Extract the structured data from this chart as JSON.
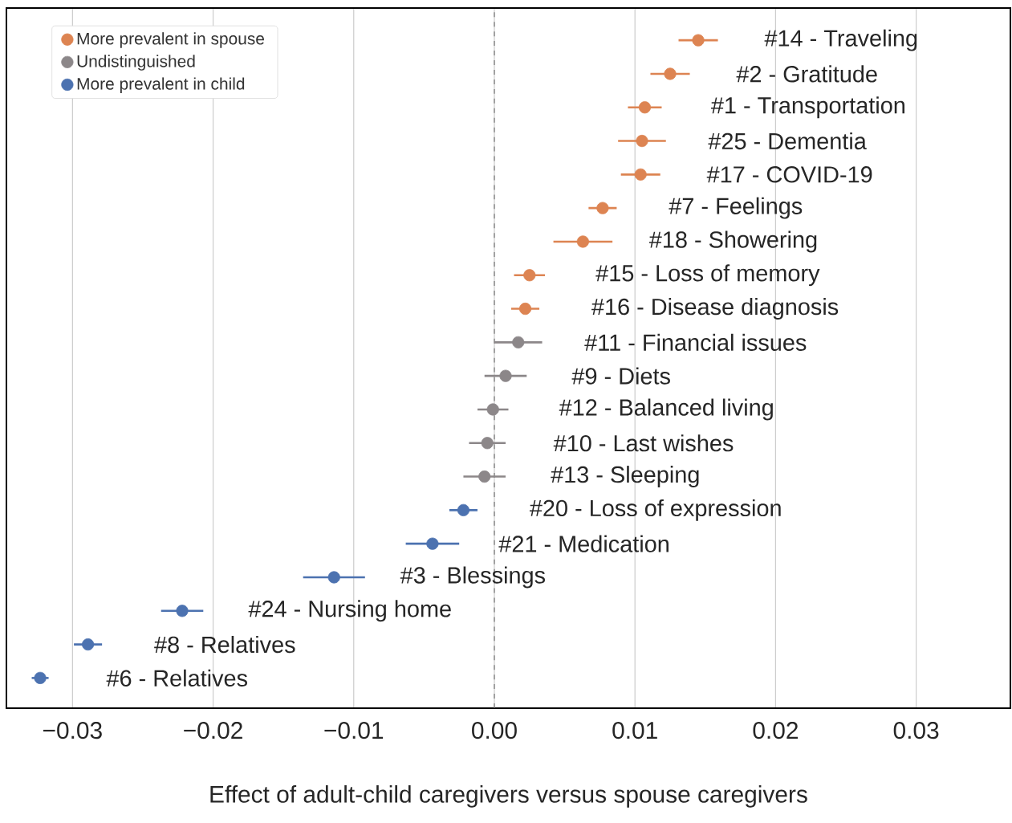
{
  "chart_data": {
    "type": "scatter",
    "orientation": "horizontal",
    "categories": [
      "#14 - Traveling",
      "#2 - Gratitude",
      "#1 - Transportation",
      "#25 - Dementia",
      "#17 - COVID-19",
      "#7 - Feelings",
      "#18 - Showering",
      "#15 - Loss of memory",
      "#16 - Disease diagnosis",
      "#11 - Financial issues",
      "#9 - Diets",
      "#12 - Balanced living",
      "#10 - Last wishes",
      "#13 - Sleeping",
      "#20 - Loss of expression",
      "#21 - Medication",
      "#3 - Blessings",
      "#24 - Nursing home",
      "#8 - Relatives",
      "#6 - Relatives"
    ],
    "xlabel": "Effect of adult-child caregivers versus spouse caregivers",
    "xlim": [
      -0.0347,
      0.0367
    ],
    "xticks": [
      {
        "value": -0.03,
        "label": "−0.03"
      },
      {
        "value": -0.02,
        "label": "−0.02"
      },
      {
        "value": -0.01,
        "label": "−0.01"
      },
      {
        "value": 0,
        "label": "0.00"
      },
      {
        "value": 0.01,
        "label": "0.01"
      },
      {
        "value": 0.02,
        "label": "0.02"
      },
      {
        "value": 0.03,
        "label": "0.03"
      }
    ],
    "grid": "x",
    "legend": "top left",
    "marker": "circle",
    "ref_lines": [
      {
        "axis": "x",
        "value": 0,
        "line_style": "dashed",
        "color": "#777777"
      }
    ],
    "series": [
      {
        "name": "More prevalent in spouse",
        "color": "#dd8452",
        "values": [
          0.0145,
          0.0125,
          0.0107,
          0.0105,
          0.0104,
          0.0077,
          0.0063,
          0.0025,
          0.0022,
          null,
          null,
          null,
          null,
          null,
          null,
          null,
          null,
          null,
          null,
          null
        ],
        "errors": [
          0.0014,
          0.0014,
          0.0012,
          0.0017,
          0.0014,
          0.001,
          0.0021,
          0.0011,
          0.001,
          null,
          null,
          null,
          null,
          null,
          null,
          null,
          null,
          null,
          null,
          null
        ]
      },
      {
        "name": "Undistinguished",
        "color": "#8c8789",
        "values": [
          null,
          null,
          null,
          null,
          null,
          null,
          null,
          null,
          null,
          0.0017,
          0.0008,
          -0.0001,
          -0.0005,
          -0.0007,
          null,
          null,
          null,
          null,
          null,
          null
        ],
        "errors": [
          null,
          null,
          null,
          null,
          null,
          null,
          null,
          null,
          null,
          0.0017,
          0.0015,
          0.0011,
          0.0013,
          0.0015,
          null,
          null,
          null,
          null,
          null,
          null
        ]
      },
      {
        "name": "More prevalent in child",
        "color": "#4c72b0",
        "values": [
          null,
          null,
          null,
          null,
          null,
          null,
          null,
          null,
          null,
          null,
          null,
          null,
          null,
          null,
          -0.0022,
          -0.0044,
          -0.0114,
          -0.0222,
          -0.0289,
          -0.0323
        ],
        "errors": [
          null,
          null,
          null,
          null,
          null,
          null,
          null,
          null,
          null,
          null,
          null,
          null,
          null,
          null,
          0.001,
          0.0019,
          0.0022,
          0.0015,
          0.001,
          0.0006
        ]
      }
    ]
  }
}
